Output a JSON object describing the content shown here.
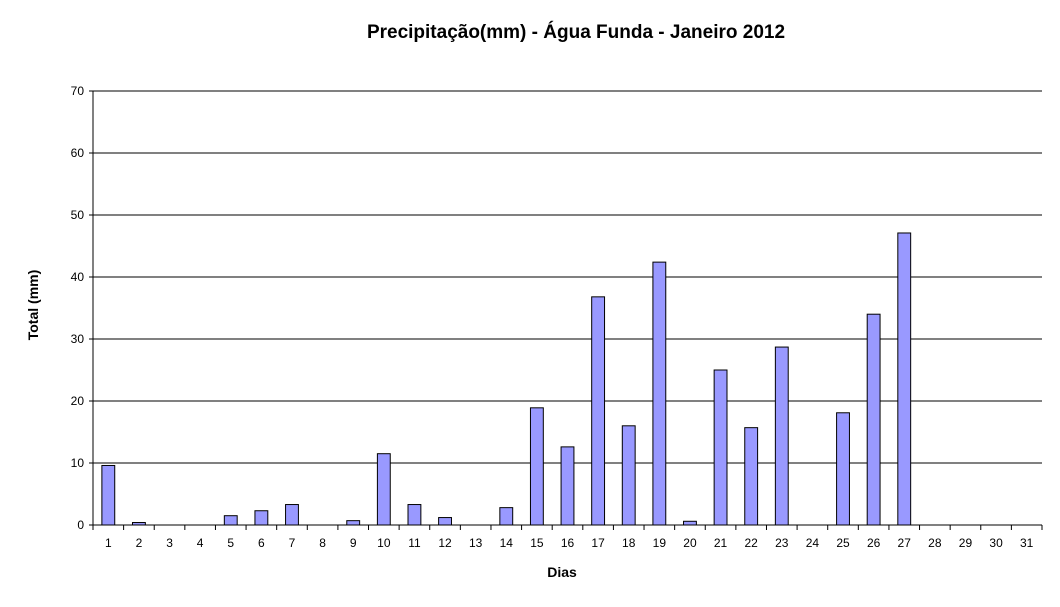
{
  "chart_data": {
    "type": "bar",
    "title": "Precipitação(mm) - Água Funda - Janeiro 2012",
    "xlabel": "Dias",
    "ylabel": "Total (mm)",
    "ylim": [
      0,
      70
    ],
    "yticks": [
      "0",
      "10",
      "20",
      "30",
      "40",
      "50",
      "60",
      "70"
    ],
    "grid": true,
    "categories": [
      "1",
      "2",
      "3",
      "4",
      "5",
      "6",
      "7",
      "8",
      "9",
      "10",
      "11",
      "12",
      "13",
      "14",
      "15",
      "16",
      "17",
      "18",
      "19",
      "20",
      "21",
      "22",
      "23",
      "24",
      "25",
      "26",
      "27",
      "28",
      "29",
      "30",
      "31"
    ],
    "values": [
      9.6,
      0.4,
      0,
      0,
      1.5,
      2.3,
      3.3,
      0,
      0.7,
      11.5,
      3.3,
      1.2,
      0,
      2.8,
      18.9,
      12.6,
      36.8,
      16.0,
      42.4,
      0.6,
      25.0,
      15.7,
      28.7,
      0,
      18.1,
      34.0,
      47.1,
      0,
      0,
      0,
      0
    ],
    "bar_color": "#9999ff"
  }
}
